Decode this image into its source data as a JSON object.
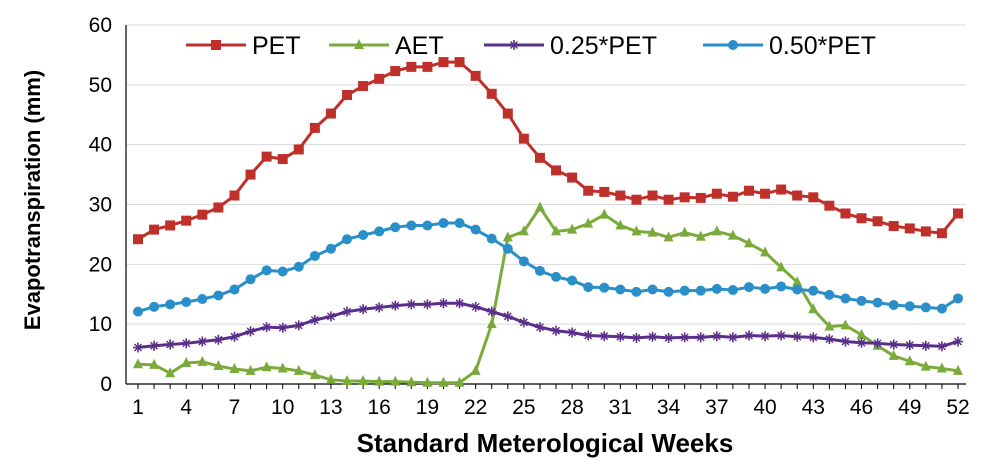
{
  "chart_data": {
    "type": "line",
    "title": "",
    "xlabel": "Standard Meterological Weeks",
    "ylabel": "Evapotranspiration (mm)",
    "ylim": [
      0,
      60
    ],
    "xlim": [
      1,
      52
    ],
    "yticks": [
      0,
      10,
      20,
      30,
      40,
      50,
      60
    ],
    "xticks": [
      1,
      4,
      7,
      10,
      13,
      16,
      19,
      22,
      25,
      28,
      31,
      34,
      37,
      40,
      43,
      46,
      49,
      52
    ],
    "grid": {
      "horizontal": true,
      "vertical": false
    },
    "legend": {
      "placement": "top",
      "orientation": "horizontal"
    },
    "x": [
      1,
      2,
      3,
      4,
      5,
      6,
      7,
      8,
      9,
      10,
      11,
      12,
      13,
      14,
      15,
      16,
      17,
      18,
      19,
      20,
      21,
      22,
      23,
      24,
      25,
      26,
      27,
      28,
      29,
      30,
      31,
      32,
      33,
      34,
      35,
      36,
      37,
      38,
      39,
      40,
      41,
      42,
      43,
      44,
      45,
      46,
      47,
      48,
      49,
      50,
      51,
      52
    ],
    "series": [
      {
        "name": "PET",
        "color": "#c0302a",
        "marker": "square",
        "values": [
          24.2,
          25.8,
          26.5,
          27.3,
          28.3,
          29.5,
          31.5,
          35,
          38,
          37.6,
          39.2,
          42.8,
          45.2,
          48.3,
          49.8,
          51,
          52.3,
          53,
          53,
          53.8,
          53.8,
          51.5,
          48.5,
          45.2,
          41,
          37.8,
          35.7,
          34.5,
          32.3,
          32.1,
          31.5,
          30.8,
          31.5,
          30.8,
          31.2,
          31.1,
          31.8,
          31.3,
          32.3,
          31.8,
          32.5,
          31.5,
          31.2,
          29.8,
          28.5,
          27.7,
          27.2,
          26.4,
          26,
          25.5,
          25.2,
          28.5
        ]
      },
      {
        "name": "AET",
        "color": "#7aab3a",
        "marker": "triangle",
        "values": [
          3.3,
          3.2,
          1.8,
          3.5,
          3.7,
          3,
          2.5,
          2.2,
          2.8,
          2.6,
          2.2,
          1.5,
          0.7,
          0.5,
          0.5,
          0.4,
          0.4,
          0.3,
          0.2,
          0.2,
          0.2,
          2.2,
          10,
          24.5,
          25.5,
          29.5,
          25.5,
          25.8,
          26.8,
          28.3,
          26.5,
          25.5,
          25.3,
          24.5,
          25.3,
          24.6,
          25.5,
          24.8,
          23.5,
          22,
          19.5,
          17,
          12.5,
          9.6,
          9.8,
          8.2,
          6.4,
          4.7,
          3.8,
          2.9,
          2.6,
          2.2
        ]
      },
      {
        "name": "0.25*PET",
        "color": "#5a2f8a",
        "marker": "star",
        "values": [
          6.1,
          6.4,
          6.6,
          6.8,
          7.1,
          7.4,
          7.9,
          8.8,
          9.5,
          9.4,
          9.8,
          10.7,
          11.3,
          12.1,
          12.5,
          12.8,
          13.1,
          13.3,
          13.3,
          13.5,
          13.5,
          12.9,
          12.1,
          11.3,
          10.3,
          9.5,
          8.9,
          8.6,
          8.1,
          8,
          7.9,
          7.7,
          7.9,
          7.7,
          7.8,
          7.8,
          8,
          7.8,
          8.1,
          8,
          8.1,
          7.9,
          7.8,
          7.5,
          7.1,
          6.9,
          6.8,
          6.6,
          6.5,
          6.4,
          6.3,
          7.1
        ]
      },
      {
        "name": "0.50*PET",
        "color": "#2a8ec9",
        "marker": "circle",
        "values": [
          12.1,
          12.9,
          13.3,
          13.7,
          14.2,
          14.8,
          15.8,
          17.5,
          19,
          18.8,
          19.6,
          21.4,
          22.6,
          24.2,
          24.9,
          25.5,
          26.2,
          26.5,
          26.5,
          26.9,
          26.9,
          25.8,
          24.3,
          22.6,
          20.5,
          18.9,
          17.9,
          17.3,
          16.2,
          16.1,
          15.8,
          15.4,
          15.8,
          15.4,
          15.6,
          15.6,
          15.9,
          15.7,
          16.2,
          15.9,
          16.3,
          15.8,
          15.6,
          14.9,
          14.3,
          13.9,
          13.6,
          13.2,
          13,
          12.8,
          12.6,
          14.3
        ]
      }
    ]
  }
}
